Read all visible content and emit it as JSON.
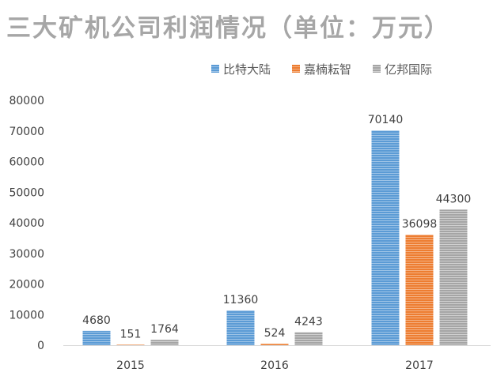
{
  "chart_data": {
    "type": "bar",
    "title": "三大矿机公司利润情况（单位：万元）",
    "categories": [
      "2015",
      "2016",
      "2017"
    ],
    "series": [
      {
        "name": "比特大陆",
        "values": [
          4680,
          11360,
          70140
        ],
        "color": "#5b9bd5"
      },
      {
        "name": "嘉楠耘智",
        "values": [
          151,
          524,
          36098
        ],
        "color": "#ed7d31"
      },
      {
        "name": "亿邦国际",
        "values": [
          1764,
          4243,
          44300
        ],
        "color": "#a5a5a5"
      }
    ],
    "ylim": [
      0,
      80000
    ],
    "yticks": [
      "0",
      "10000",
      "20000",
      "30000",
      "40000",
      "50000",
      "60000",
      "70000",
      "80000"
    ],
    "data_labels": [
      [
        "4680",
        "11360",
        "70140"
      ],
      [
        "151",
        "524",
        "36098"
      ],
      [
        "1764",
        "4243",
        "44300"
      ]
    ],
    "xlabel": "",
    "ylabel": "",
    "legend_position": "top-right",
    "grid": false
  }
}
